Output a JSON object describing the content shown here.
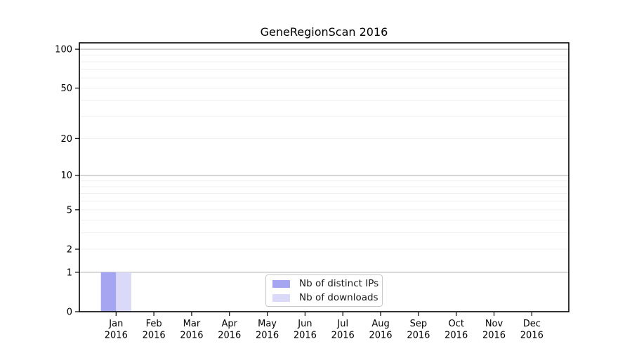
{
  "figure": {
    "title": "GeneRegionScan 2016",
    "background": "#ffffff"
  },
  "legend": {
    "position": "lower center",
    "border_color": "#c9c9c9",
    "items": [
      {
        "label": "Nb of distinct IPs",
        "color": "#a5a5f2"
      },
      {
        "label": "Nb of downloads",
        "color": "#dadaf8"
      }
    ]
  },
  "chart_data": {
    "type": "bar",
    "title": "GeneRegionScan 2016",
    "categories": [
      "Jan 2016",
      "Feb 2016",
      "Mar 2016",
      "Apr 2016",
      "May 2016",
      "Jun 2016",
      "Jul 2016",
      "Aug 2016",
      "Sep 2016",
      "Oct 2016",
      "Nov 2016",
      "Dec 2016"
    ],
    "series": [
      {
        "name": "Nb of distinct IPs",
        "color": "#a5a5f2",
        "values": [
          1,
          0,
          0,
          0,
          0,
          0,
          0,
          0,
          0,
          0,
          0,
          0
        ]
      },
      {
        "name": "Nb of downloads",
        "color": "#dadaf8",
        "values": [
          1,
          0,
          0,
          0,
          0,
          0,
          0,
          0,
          0,
          0,
          0,
          0
        ]
      }
    ],
    "xlabel": "",
    "ylabel": "",
    "yscale": "log1p",
    "ylim": [
      0,
      112
    ],
    "yticks": [
      0,
      1,
      2,
      5,
      10,
      20,
      50,
      100
    ],
    "gridlines": {
      "orientation": "horizontal",
      "major": [
        1,
        10,
        100
      ],
      "minor": [
        2,
        3,
        4,
        5,
        6,
        7,
        8,
        9,
        20,
        30,
        40,
        50,
        60,
        70,
        80,
        90
      ],
      "major_color": "#bdbdbd",
      "minor_color": "#efefef"
    },
    "legend_position": "lower center",
    "axis_color": "#000000"
  }
}
